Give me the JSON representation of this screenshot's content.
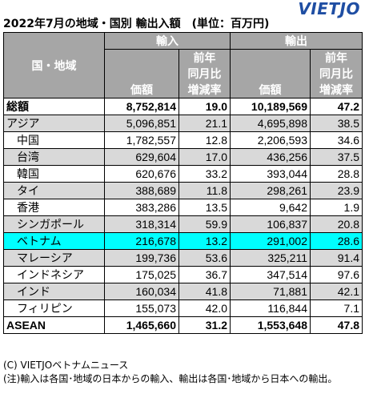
{
  "title": "2022年7月の地域・国別 輸出入額　(単位：百万円)",
  "logo": "VIETJO",
  "header": {
    "region": "国・地域",
    "import": "輸入",
    "export": "輸出",
    "value": "価額",
    "change_l1": "前年",
    "change_l2": "同月比",
    "change_l3": "増減率"
  },
  "rows": [
    {
      "name": "総額",
      "imp": "8,752,814",
      "imp_chg": "19.0",
      "exp": "10,189,569",
      "exp_chg": "47.2"
    },
    {
      "name": "アジア",
      "imp": "5,096,851",
      "imp_chg": "21.1",
      "exp": "4,695,898",
      "exp_chg": "38.5"
    },
    {
      "name": "中国",
      "imp": "1,782,557",
      "imp_chg": "12.8",
      "exp": "2,206,593",
      "exp_chg": "34.6"
    },
    {
      "name": "台湾",
      "imp": "629,604",
      "imp_chg": "17.0",
      "exp": "436,256",
      "exp_chg": "37.5"
    },
    {
      "name": "韓国",
      "imp": "620,676",
      "imp_chg": "33.2",
      "exp": "393,044",
      "exp_chg": "28.8"
    },
    {
      "name": "タイ",
      "imp": "388,689",
      "imp_chg": "11.8",
      "exp": "298,261",
      "exp_chg": "23.9"
    },
    {
      "name": "香港",
      "imp": "383,286",
      "imp_chg": "13.5",
      "exp": "9,642",
      "exp_chg": "1.9"
    },
    {
      "name": "シンガポール",
      "imp": "318,314",
      "imp_chg": "59.9",
      "exp": "106,837",
      "exp_chg": "20.8"
    },
    {
      "name": "ベトナム",
      "imp": "216,678",
      "imp_chg": "13.2",
      "exp": "291,002",
      "exp_chg": "28.6"
    },
    {
      "name": "マレーシア",
      "imp": "199,736",
      "imp_chg": "53.6",
      "exp": "325,211",
      "exp_chg": "91.4"
    },
    {
      "name": "インドネシア",
      "imp": "175,025",
      "imp_chg": "36.7",
      "exp": "347,514",
      "exp_chg": "97.6"
    },
    {
      "name": "インド",
      "imp": "160,034",
      "imp_chg": "41.8",
      "exp": "71,881",
      "exp_chg": "42.1"
    },
    {
      "name": "フィリピン",
      "imp": "155,073",
      "imp_chg": "42.0",
      "exp": "116,844",
      "exp_chg": "7.1"
    },
    {
      "name": "ASEAN",
      "imp": "1,465,660",
      "imp_chg": "31.2",
      "exp": "1,553,648",
      "exp_chg": "47.8"
    }
  ],
  "notes": {
    "copyright": "(C) VIETJOベトナムニュース",
    "note": "(注)輸入は各国･地域の日本からの輸入、輸出は各国･地域から日本への輸出。"
  }
}
